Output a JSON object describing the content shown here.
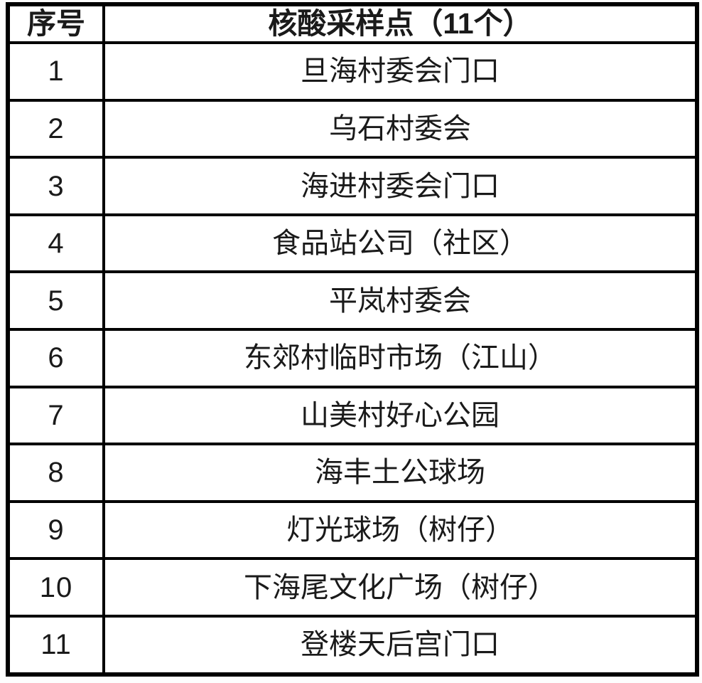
{
  "table": {
    "header": {
      "serial_col": "序号",
      "site_col": "核酸采样点（11个）"
    },
    "rows": [
      {
        "no": "1",
        "site": "旦海村委会门口"
      },
      {
        "no": "2",
        "site": "乌石村委会"
      },
      {
        "no": "3",
        "site": "海进村委会门口"
      },
      {
        "no": "4",
        "site": "食品站公司（社区）"
      },
      {
        "no": "5",
        "site": "平岚村委会"
      },
      {
        "no": "6",
        "site": "东郊村临时市场（江山）"
      },
      {
        "no": "7",
        "site": "山美村好心公园"
      },
      {
        "no": "8",
        "site": "海丰土公球场"
      },
      {
        "no": "9",
        "site": "灯光球场（树仔）"
      },
      {
        "no": "10",
        "site": "下海尾文化广场（树仔）"
      },
      {
        "no": "11",
        "site": "登楼天后宫门口"
      }
    ],
    "colors": {
      "border": "#000000",
      "text": "#1a1a1a",
      "cell_background": "#ffffff",
      "page_background": "#fdfdfd"
    }
  }
}
